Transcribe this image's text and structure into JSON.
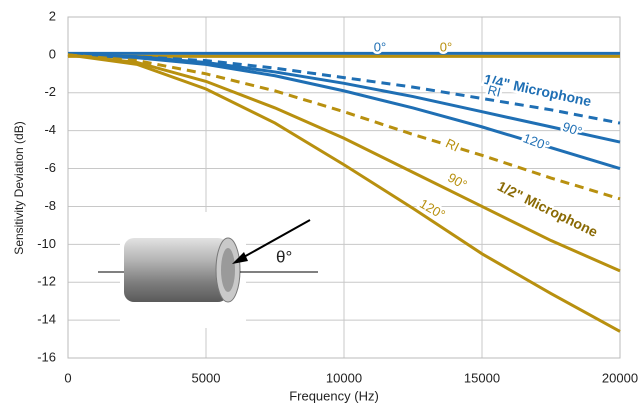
{
  "chart_data": {
    "type": "line",
    "xlabel": "Frequency (Hz)",
    "ylabel": "Sensitivity Deviation (dB)",
    "x": [
      0,
      2500,
      5000,
      7500,
      10000,
      12500,
      15000,
      17500,
      20000
    ],
    "xlim": [
      0,
      20000
    ],
    "xticks": [
      0,
      5000,
      10000,
      15000,
      20000
    ],
    "ylim": [
      -16,
      2
    ],
    "yticks": [
      -16,
      -14,
      -12,
      -10,
      -8,
      -6,
      -4,
      -2,
      0,
      2
    ],
    "grid": true,
    "series": [
      {
        "name": "0°",
        "color": "#1f6fb4",
        "dashed": false,
        "values": [
          0,
          0,
          0,
          0,
          0,
          0,
          0,
          0,
          0
        ]
      },
      {
        "name": "0°",
        "color": "#b8900f",
        "dashed": false,
        "values": [
          0,
          0,
          0,
          0,
          0,
          0,
          0,
          0,
          0
        ]
      },
      {
        "name": "RI",
        "color": "#1f6fb4",
        "dashed": true,
        "values": [
          0,
          -0.1,
          -0.3,
          -0.7,
          -1.2,
          -1.7,
          -2.3,
          -2.9,
          -3.6
        ]
      },
      {
        "name": "90°",
        "color": "#1f6fb4",
        "dashed": false,
        "values": [
          0,
          -0.1,
          -0.4,
          -0.9,
          -1.5,
          -2.2,
          -3.0,
          -3.8,
          -4.6
        ]
      },
      {
        "name": "120°",
        "color": "#1f6fb4",
        "dashed": false,
        "values": [
          0,
          -0.15,
          -0.5,
          -1.1,
          -1.9,
          -2.8,
          -3.8,
          -4.9,
          -6.0
        ]
      },
      {
        "name": "RI",
        "color": "#b8900f",
        "dashed": true,
        "values": [
          0,
          -0.3,
          -1.0,
          -1.9,
          -3.0,
          -4.2,
          -5.3,
          -6.5,
          -7.6
        ]
      },
      {
        "name": "90°",
        "color": "#b8900f",
        "dashed": false,
        "values": [
          0,
          -0.4,
          -1.4,
          -2.8,
          -4.4,
          -6.2,
          -8.0,
          -9.8,
          -11.4
        ]
      },
      {
        "name": "120°",
        "color": "#b8900f",
        "dashed": false,
        "values": [
          0,
          -0.5,
          -1.8,
          -3.6,
          -5.8,
          -8.1,
          -10.5,
          -12.6,
          -14.6
        ]
      }
    ],
    "annotations": [
      "1/4\" Microphone",
      "1/2\" Microphone",
      "θ°"
    ]
  }
}
